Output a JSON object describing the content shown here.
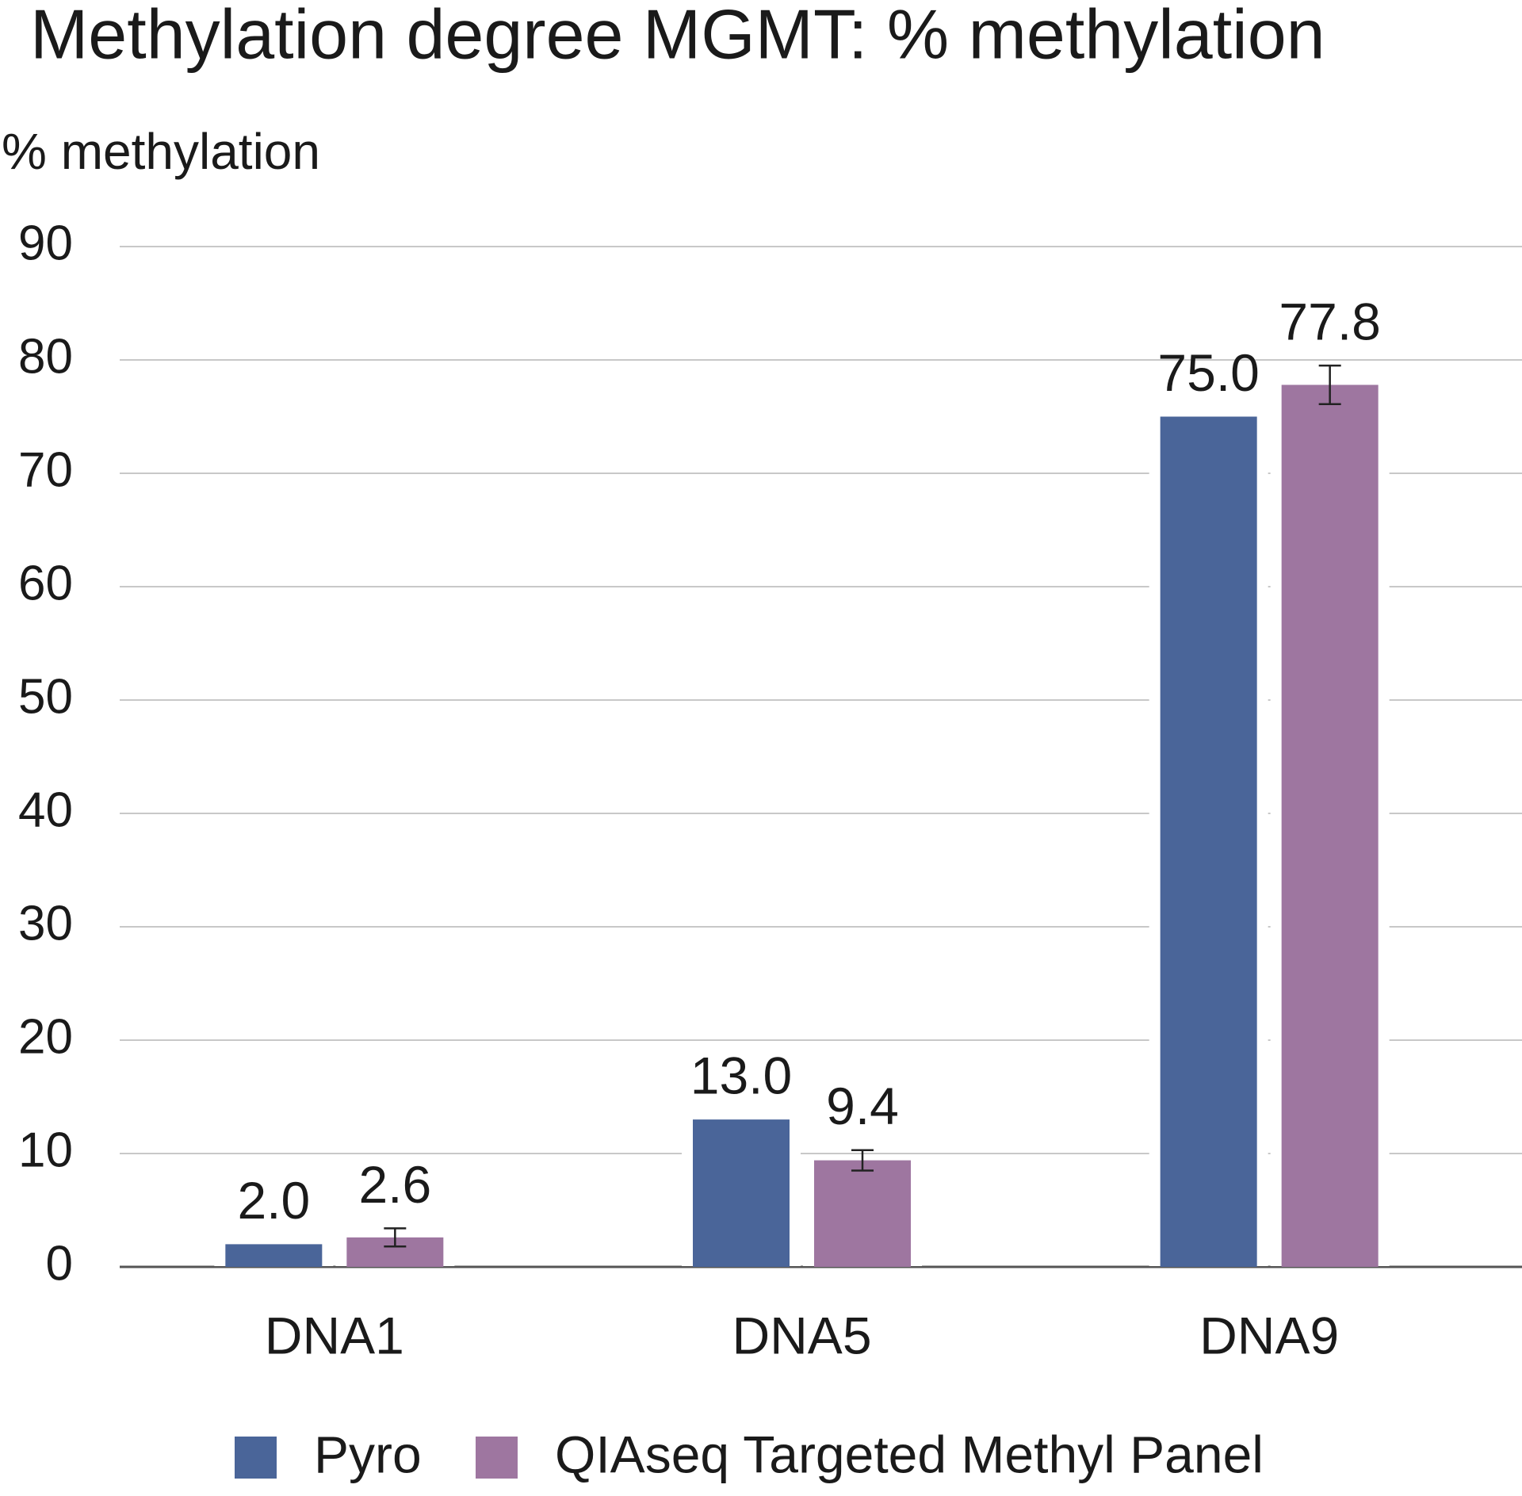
{
  "chart_data": {
    "type": "bar",
    "title": "Methylation degree MGMT: % methylation",
    "y_label": "% methylation",
    "categories": [
      "DNA1",
      "DNA5",
      "DNA9"
    ],
    "series": [
      {
        "name": "Pyro",
        "color": "#4a6599",
        "values": [
          2.0,
          13.0,
          75.0
        ],
        "value_labels": [
          "2.0",
          "13.0",
          "75.0"
        ]
      },
      {
        "name": "QIAseq Targeted Methyl Panel",
        "color": "#9e76a0",
        "values": [
          2.6,
          9.4,
          77.8
        ],
        "value_labels": [
          "2.6",
          "9.4",
          "77.8"
        ],
        "errors": [
          0.8,
          0.9,
          1.7
        ]
      }
    ],
    "ylim": [
      0,
      90
    ],
    "yticks": [
      0,
      10,
      20,
      30,
      40,
      50,
      60,
      70,
      80,
      90
    ],
    "grid": true,
    "legend": "bottom"
  }
}
